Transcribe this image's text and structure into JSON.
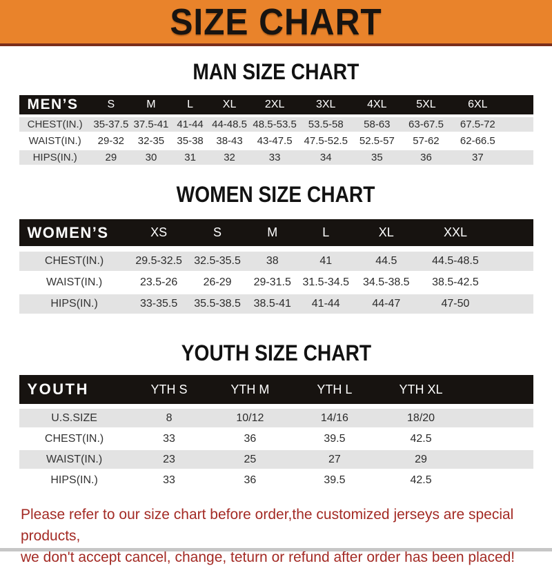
{
  "banner": {
    "title": "SIZE CHART"
  },
  "men": {
    "heading": "MAN SIZE CHART",
    "corner": "MEN’S",
    "sizes": [
      "S",
      "M",
      "L",
      "XL",
      "2XL",
      "3XL",
      "4XL",
      "5XL",
      "6XL"
    ],
    "rows": [
      {
        "label": "CHEST(IN.)",
        "values": [
          "35-37.5",
          "37.5-41",
          "41-44",
          "44-48.5",
          "48.5-53.5",
          "53.5-58",
          "58-63",
          "63-67.5",
          "67.5-72"
        ]
      },
      {
        "label": "WAIST(IN.)",
        "values": [
          "29-32",
          "32-35",
          "35-38",
          "38-43",
          "43-47.5",
          "47.5-52.5",
          "52.5-57",
          "57-62",
          "62-66.5"
        ]
      },
      {
        "label": "HIPS(IN.)",
        "values": [
          "29",
          "30",
          "31",
          "32",
          "33",
          "34",
          "35",
          "36",
          "37"
        ]
      }
    ]
  },
  "women": {
    "heading": "WOMEN SIZE CHART",
    "corner": "WOMEN’S",
    "sizes": [
      "XS",
      "S",
      "M",
      "L",
      "XL",
      "XXL"
    ],
    "rows": [
      {
        "label": "CHEST(IN.)",
        "values": [
          "29.5-32.5",
          "32.5-35.5",
          "38",
          "41",
          "44.5",
          "44.5-48.5"
        ]
      },
      {
        "label": "WAIST(IN.)",
        "values": [
          "23.5-26",
          "26-29",
          "29-31.5",
          "31.5-34.5",
          "34.5-38.5",
          "38.5-42.5"
        ]
      },
      {
        "label": "HIPS(IN.)",
        "values": [
          "33-35.5",
          "35.5-38.5",
          "38.5-41",
          "41-44",
          "44-47",
          "47-50"
        ]
      }
    ]
  },
  "youth": {
    "heading": "YOUTH SIZE CHART",
    "corner": "YOUTH",
    "sizes": [
      "YTH S",
      "YTH M",
      "YTH L",
      "YTH XL"
    ],
    "rows": [
      {
        "label": "U.S.SIZE",
        "values": [
          "8",
          "10/12",
          "14/16",
          "18/20"
        ]
      },
      {
        "label": "CHEST(IN.)",
        "values": [
          "33",
          "36",
          "39.5",
          "42.5"
        ]
      },
      {
        "label": "WAIST(IN.)",
        "values": [
          "23",
          "25",
          "27",
          "29"
        ]
      },
      {
        "label": "HIPS(IN.)",
        "values": [
          "33",
          "36",
          "39.5",
          "42.5"
        ]
      }
    ]
  },
  "footer": {
    "line1": "Please refer to our size chart before order,the customized jerseys are special products,",
    "line2": "we don't accept cancel, change, teturn or refund after order has been placed!"
  },
  "colors": {
    "banner_orange": "#E9832B",
    "banner_underline": "#7A2D1B",
    "header_black": "#171310",
    "stripe_gray": "#E3E3E3",
    "note_red": "#A32A24"
  }
}
